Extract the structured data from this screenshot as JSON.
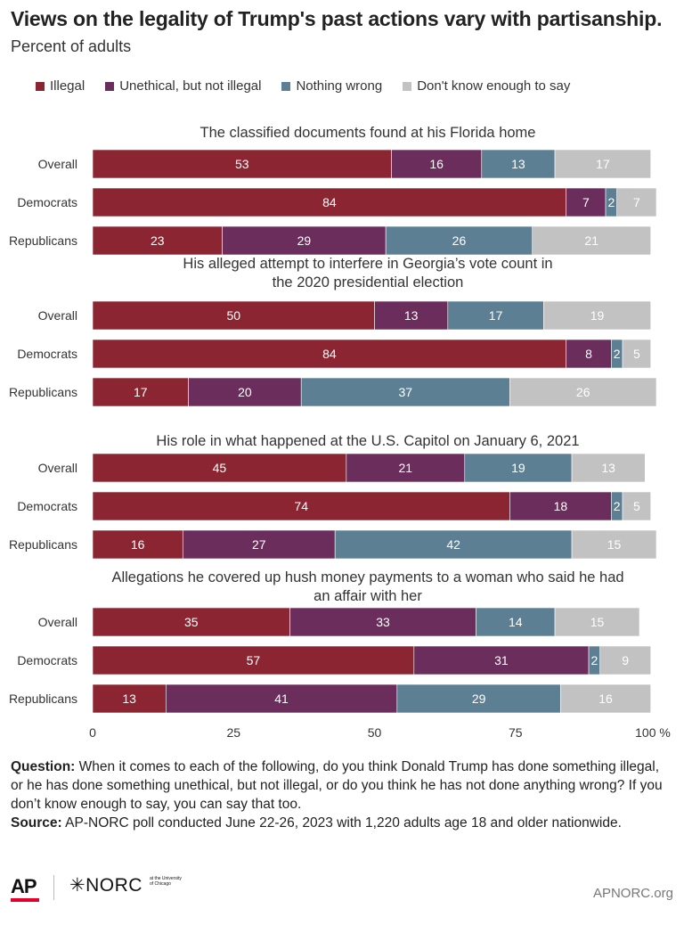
{
  "title": "Views on the legality of Trump's past actions vary with partisanship.",
  "subtitle": "Percent of adults",
  "legend": [
    {
      "label": "Illegal",
      "color": "#8b2532"
    },
    {
      "label": "Unethical, but not illegal",
      "color": "#6b2d5c"
    },
    {
      "label": "Nothing wrong",
      "color": "#5c7f93"
    },
    {
      "label": "Don't know enough to say",
      "color": "#c2c2c2"
    }
  ],
  "chart_data": {
    "type": "bar",
    "orientation": "horizontal",
    "stacked": true,
    "xlim": [
      0,
      100
    ],
    "x_ticks": [
      "0",
      "25",
      "50",
      "75",
      "100 %"
    ],
    "categories_per_group": [
      "Overall",
      "Democrats",
      "Republicans"
    ],
    "series_names": [
      "Illegal",
      "Unethical, but not illegal",
      "Nothing wrong",
      "Don't know enough to say"
    ],
    "groups": [
      {
        "title": "The classified documents found at his Florida home",
        "rows": [
          {
            "label": "Overall",
            "values": [
              53,
              16,
              13,
              17
            ]
          },
          {
            "label": "Democrats",
            "values": [
              84,
              7,
              2,
              7
            ]
          },
          {
            "label": "Republicans",
            "values": [
              23,
              29,
              26,
              21
            ]
          }
        ]
      },
      {
        "title": "His alleged attempt to interfere in Georgia’s vote count in the 2020 presidential election",
        "rows": [
          {
            "label": "Overall",
            "values": [
              50,
              13,
              17,
              19
            ]
          },
          {
            "label": "Democrats",
            "values": [
              84,
              8,
              2,
              5
            ]
          },
          {
            "label": "Republicans",
            "values": [
              17,
              20,
              37,
              26
            ]
          }
        ]
      },
      {
        "title": "His role in what happened at the U.S. Capitol on January 6, 2021",
        "rows": [
          {
            "label": "Overall",
            "values": [
              45,
              21,
              19,
              13
            ]
          },
          {
            "label": "Democrats",
            "values": [
              74,
              18,
              2,
              5
            ]
          },
          {
            "label": "Republicans",
            "values": [
              16,
              27,
              42,
              15
            ]
          }
        ]
      },
      {
        "title": "Allegations he covered up hush money payments to a woman who said he had an affair with her",
        "rows": [
          {
            "label": "Overall",
            "values": [
              35,
              33,
              14,
              15
            ]
          },
          {
            "label": "Democrats",
            "values": [
              57,
              31,
              2,
              9
            ]
          },
          {
            "label": "Republicans",
            "values": [
              13,
              41,
              29,
              16
            ]
          }
        ]
      }
    ]
  },
  "notes": {
    "question_label": "Question:",
    "question_text": " When it comes to each of the following, do you think Donald Trump has done something illegal, or he has done something unethical, but not illegal, or do you think he has not done anything wrong? If you don’t know enough to say, you can say that too.",
    "source_label": "Source:",
    "source_text": " AP-NORC poll conducted June 22-26, 2023 with 1,220 adults age 18 and older nationwide."
  },
  "footer": {
    "ap_logo": "AP",
    "norc_logo": "✳NORC",
    "norc_small": "at the University of Chicago",
    "site": "APNORC.org"
  }
}
